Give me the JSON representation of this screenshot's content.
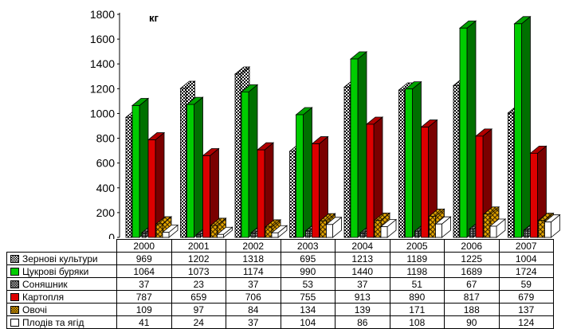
{
  "chart_data": {
    "type": "bar",
    "unit_label": "кг",
    "ylim": [
      0,
      1800
    ],
    "y_ticks": [
      0,
      200,
      400,
      600,
      800,
      1000,
      1200,
      1400,
      1600,
      1800
    ],
    "categories": [
      "2000",
      "2001",
      "2002",
      "2003",
      "2004",
      "2005",
      "2006",
      "2007"
    ],
    "grid": false,
    "legend_placement": "table-left",
    "series": [
      {
        "name": "Зернові культури",
        "color": "#ffffff",
        "pattern": "checker",
        "values": [
          969,
          1202,
          1318,
          695,
          1213,
          1189,
          1225,
          1004
        ]
      },
      {
        "name": "Цукрові буряки",
        "color": "#00cc00",
        "pattern": "solid",
        "values": [
          1064,
          1073,
          1174,
          990,
          1440,
          1198,
          1689,
          1724
        ]
      },
      {
        "name": "Соняшник",
        "color": "#4d4d4d",
        "pattern": "grid",
        "values": [
          37,
          23,
          37,
          53,
          37,
          51,
          67,
          59
        ]
      },
      {
        "name": "Картопля",
        "color": "#dd0000",
        "pattern": "solid",
        "values": [
          787,
          659,
          706,
          755,
          913,
          890,
          817,
          679
        ]
      },
      {
        "name": "Овочі",
        "color": "#e6a800",
        "pattern": "weave",
        "values": [
          109,
          97,
          84,
          134,
          139,
          171,
          188,
          137
        ]
      },
      {
        "name": "Плодів та ягід",
        "color": "#ffffff",
        "pattern": "plain",
        "values": [
          41,
          24,
          37,
          104,
          86,
          108,
          90,
          124
        ]
      }
    ]
  }
}
